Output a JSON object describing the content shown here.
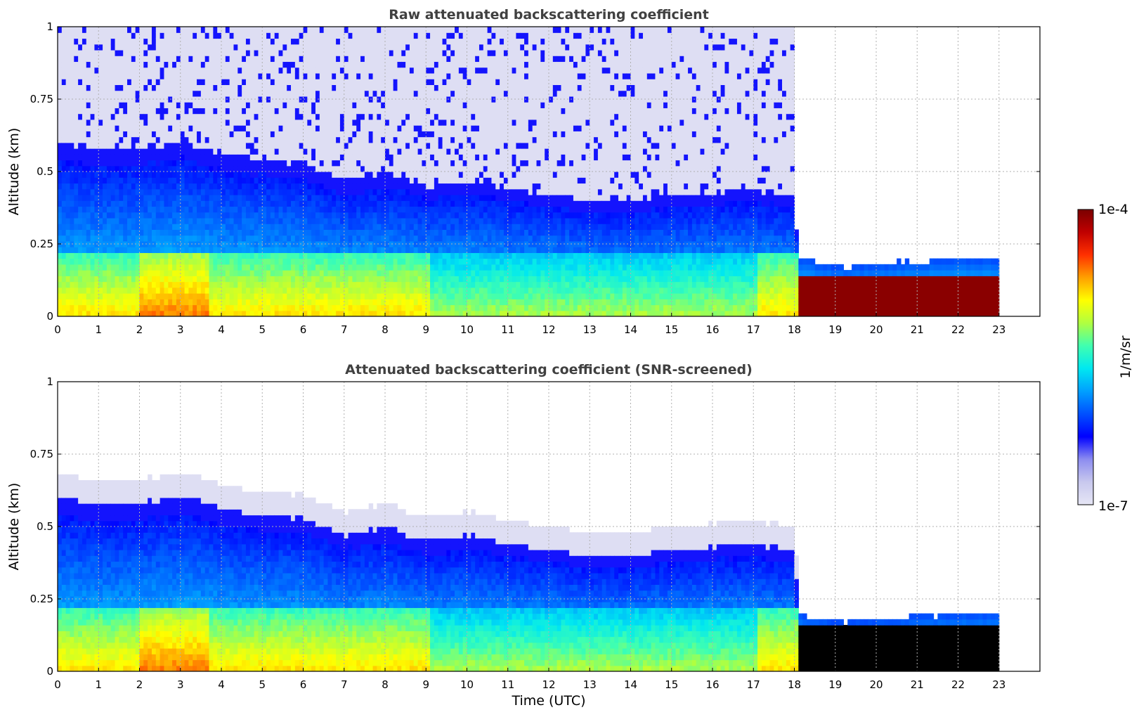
{
  "figure": {
    "xlabel": "Time (UTC)"
  },
  "chart_data": [
    {
      "type": "heatmap",
      "title": "Raw attenuated backscattering coefficient",
      "xlabel": "",
      "ylabel": "Altitude (km)",
      "xlim": [
        0,
        24
      ],
      "ylim": [
        0,
        1
      ],
      "x_ticks": [
        "0",
        "1",
        "2",
        "3",
        "4",
        "5",
        "6",
        "7",
        "8",
        "9",
        "10",
        "11",
        "12",
        "13",
        "14",
        "15",
        "16",
        "17",
        "18",
        "19",
        "20",
        "21",
        "22",
        "23"
      ],
      "y_ticks": [
        "0",
        "0.25",
        "0.5",
        "0.75",
        "1"
      ],
      "grid": true,
      "data_coverage_hours": [
        0,
        23
      ],
      "layer_top_km": [
        [
          0,
          0.6
        ],
        [
          1,
          0.58
        ],
        [
          2,
          0.58
        ],
        [
          3,
          0.61
        ],
        [
          4,
          0.56
        ],
        [
          5,
          0.54
        ],
        [
          6,
          0.53
        ],
        [
          7,
          0.47
        ],
        [
          8,
          0.5
        ],
        [
          9,
          0.45
        ],
        [
          10,
          0.47
        ],
        [
          11,
          0.44
        ],
        [
          12,
          0.42
        ],
        [
          13,
          0.4
        ],
        [
          14,
          0.4
        ],
        [
          15,
          0.42
        ],
        [
          16,
          0.43
        ],
        [
          17,
          0.44
        ],
        [
          17.9,
          0.42
        ],
        [
          18.1,
          0.2
        ],
        [
          19,
          0.17
        ],
        [
          20,
          0.18
        ],
        [
          21,
          0.19
        ],
        [
          22,
          0.2
        ],
        [
          23,
          0.2
        ]
      ],
      "noise_above_layer_until_hour": 17.9,
      "saturated_region": {
        "x": [
          18,
          23
        ],
        "y": [
          0,
          0.15
        ]
      },
      "colorbar": {
        "label": "1/m/sr",
        "min_label": "1e-7",
        "max_label": "1e-4"
      }
    },
    {
      "type": "heatmap",
      "title": "Attenuated backscattering coefficient (SNR-screened)",
      "xlabel": "Time (UTC)",
      "ylabel": "Altitude (km)",
      "xlim": [
        0,
        24
      ],
      "ylim": [
        0,
        1
      ],
      "x_ticks": [
        "0",
        "1",
        "2",
        "3",
        "4",
        "5",
        "6",
        "7",
        "8",
        "9",
        "10",
        "11",
        "12",
        "13",
        "14",
        "15",
        "16",
        "17",
        "18",
        "19",
        "20",
        "21",
        "22",
        "23"
      ],
      "y_ticks": [
        "0",
        "0.25",
        "0.5",
        "0.75",
        "1"
      ],
      "grid": true,
      "data_coverage_hours": [
        0,
        23
      ],
      "layer_top_km": [
        [
          0,
          0.6
        ],
        [
          1,
          0.58
        ],
        [
          2,
          0.58
        ],
        [
          3,
          0.61
        ],
        [
          4,
          0.56
        ],
        [
          5,
          0.54
        ],
        [
          6,
          0.53
        ],
        [
          7,
          0.47
        ],
        [
          8,
          0.5
        ],
        [
          9,
          0.45
        ],
        [
          10,
          0.47
        ],
        [
          11,
          0.44
        ],
        [
          12,
          0.42
        ],
        [
          13,
          0.4
        ],
        [
          14,
          0.4
        ],
        [
          15,
          0.42
        ],
        [
          16,
          0.43
        ],
        [
          17,
          0.44
        ],
        [
          17.9,
          0.42
        ],
        [
          18.1,
          0.2
        ],
        [
          19,
          0.17
        ],
        [
          20,
          0.18
        ],
        [
          21,
          0.19
        ],
        [
          22,
          0.2
        ],
        [
          23,
          0.2
        ]
      ],
      "masked_region": {
        "x": [
          18,
          23
        ],
        "y": [
          0,
          0.16
        ]
      },
      "colorbar": {
        "label": "1/m/sr",
        "min_label": "1e-7",
        "max_label": "1e-4"
      }
    }
  ],
  "colorbar": {
    "label": "1/m/sr",
    "min_label": "1e-7",
    "max_label": "1e-4",
    "colors": [
      "#e6e6f5",
      "#c8c8ee",
      "#8c8cf0",
      "#0000ff",
      "#0050ff",
      "#00a0ff",
      "#00e8f0",
      "#40ffb0",
      "#b0ff40",
      "#ffff00",
      "#ffa000",
      "#ff3000",
      "#c00000",
      "#7a0000"
    ]
  }
}
